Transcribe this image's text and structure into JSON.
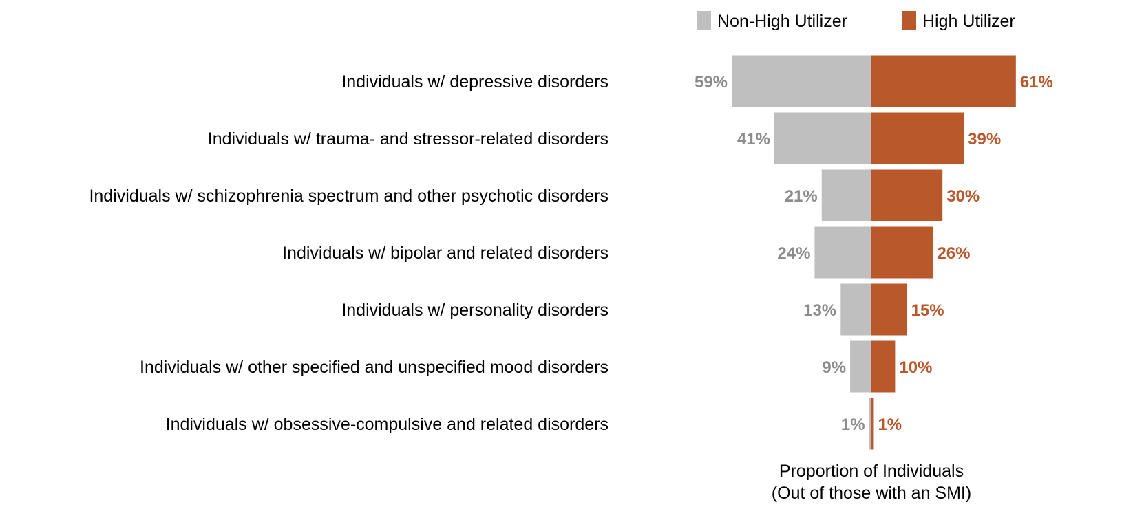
{
  "chart_data": {
    "type": "bar",
    "orientation": "diverging-horizontal",
    "categories": [
      "Individuals w/ depressive disorders",
      "Individuals w/ trauma- and stressor-related disorders",
      "Individuals w/ schizophrenia spectrum and other psychotic disorders",
      "Individuals w/ bipolar and related disorders",
      "Individuals w/ personality disorders",
      "Individuals w/ other specified and unspecified mood disorders",
      "Individuals w/ obsessive-compulsive and related disorders"
    ],
    "series": [
      {
        "name": "Non-High Utilizer",
        "side": "left",
        "values": [
          59,
          41,
          21,
          24,
          13,
          9,
          1
        ],
        "labels": [
          "59%",
          "41%",
          "21%",
          "24%",
          "13%",
          "9%",
          "1%"
        ],
        "color": "#bfbfbf",
        "label_color": "#8c8c8c"
      },
      {
        "name": "High Utilizer",
        "side": "right",
        "values": [
          61,
          39,
          30,
          26,
          15,
          10,
          1
        ],
        "labels": [
          "61%",
          "39%",
          "30%",
          "26%",
          "15%",
          "10%",
          "1%"
        ],
        "color": "#b9582a",
        "label_color": "#b9582a"
      }
    ],
    "xlabel": [
      "Proportion of Individuals",
      "(Out of those with an SMI)"
    ],
    "ylabel": "",
    "legend_position": "top",
    "grid": false
  }
}
